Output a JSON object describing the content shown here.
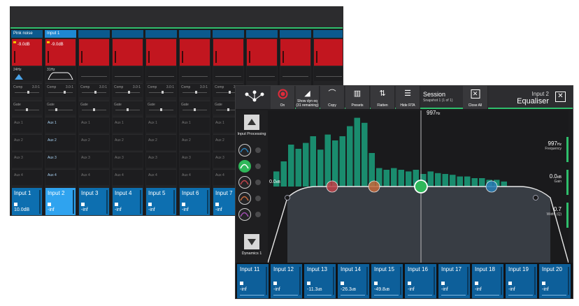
{
  "mixer": {
    "strips": [
      {
        "name": "Pink noise",
        "level": "-9.0dB",
        "eq_freq": "24Hz",
        "comp_label": "Comp",
        "comp_ratio": "3.0:1",
        "gate_label": "Gate",
        "aux": [
          "Aux 1",
          "Aux 2",
          "Aux 3",
          "Aux 4"
        ],
        "fader_name": "Input 1",
        "fader_value": "10.0dB",
        "selected": false
      },
      {
        "name": "Input 1",
        "level": "-9.0dB",
        "eq_freq": "31Hz",
        "comp_label": "Comp",
        "comp_ratio": "3.0:1",
        "gate_label": "Gate",
        "aux": [
          "Aux 1",
          "Aux 2",
          "Aux 3",
          "Aux 4"
        ],
        "fader_name": "Input 2",
        "fader_value": "-inf",
        "selected": true
      },
      {
        "name": "",
        "level": "",
        "eq_freq": "",
        "comp_label": "Comp",
        "comp_ratio": "3.0:1",
        "gate_label": "Gate",
        "aux": [
          "Aux 1",
          "Aux 2",
          "Aux 3",
          "Aux 4"
        ],
        "fader_name": "Input 3",
        "fader_value": "-inf",
        "selected": false
      },
      {
        "name": "",
        "level": "",
        "eq_freq": "",
        "comp_label": "Comp",
        "comp_ratio": "3.0:1",
        "gate_label": "Gate",
        "aux": [
          "Aux 1",
          "Aux 2",
          "Aux 3",
          "Aux 4"
        ],
        "fader_name": "Input 4",
        "fader_value": "-inf",
        "selected": false
      },
      {
        "name": "",
        "level": "",
        "eq_freq": "",
        "comp_label": "Comp",
        "comp_ratio": "3.0:1",
        "gate_label": "Gate",
        "aux": [
          "Aux 1",
          "Aux 2",
          "Aux 3",
          "Aux 4"
        ],
        "fader_name": "Input 5",
        "fader_value": "-inf",
        "selected": false
      },
      {
        "name": "",
        "level": "",
        "eq_freq": "",
        "comp_label": "Comp",
        "comp_ratio": "3.0:1",
        "gate_label": "Gate",
        "aux": [
          "Aux 1",
          "Aux 2",
          "Aux 3",
          "Aux 4"
        ],
        "fader_name": "Input 6",
        "fader_value": "-inf",
        "selected": false
      },
      {
        "name": "",
        "level": "",
        "eq_freq": "",
        "comp_label": "Comp",
        "comp_ratio": "3.0:1",
        "gate_label": "Gate",
        "aux": [
          "Aux 1",
          "Aux 2",
          "Aux 3",
          "Aux 4"
        ],
        "fader_name": "Input 7",
        "fader_value": "-inf",
        "selected": false
      },
      {
        "name": "",
        "level": "",
        "eq_freq": "",
        "comp_label": "",
        "comp_ratio": "",
        "gate_label": "",
        "aux": [
          "",
          "",
          "",
          ""
        ],
        "fader_name": "",
        "fader_value": "",
        "selected": false
      },
      {
        "name": "",
        "level": "",
        "eq_freq": "",
        "comp_label": "",
        "comp_ratio": "",
        "gate_label": "",
        "aux": [
          "",
          "",
          "",
          ""
        ],
        "fader_name": "",
        "fader_value": "",
        "selected": false
      },
      {
        "name": "",
        "level": "",
        "eq_freq": "",
        "comp_label": "",
        "comp_ratio": "",
        "gate_label": "",
        "aux": [
          "",
          "",
          "",
          ""
        ],
        "fader_name": "",
        "fader_value": "",
        "selected": false
      }
    ]
  },
  "eq_window": {
    "toolbar": {
      "on_label": "On",
      "show_dyn_label": "Show dyn eq",
      "show_dyn_sub": "(31 remaining)",
      "copy_label": "Copy",
      "presets_label": "Presets",
      "flatten_label": "Flatten",
      "hide_rta_label": "Hide RTA",
      "close_all_label": "Close All",
      "session_title": "Session",
      "snapshot": "Snapshot 1 (1 of 1)",
      "channel_name": "Input 2",
      "panel_title": "Equaliser"
    },
    "side": {
      "up_label": "Input Processing",
      "down_label": "Dynamics 1"
    },
    "graph": {
      "cursor_freq_value": "997",
      "cursor_freq_unit": "Hz",
      "zero_gain_value": "0.0",
      "zero_gain_unit": "dB",
      "freq_value": "997",
      "freq_unit": "Hz",
      "freq_label": "Frequency",
      "gain_value": "0.0",
      "gain_unit": "dB",
      "gain_label": "Gain",
      "width_value": "0.7",
      "width_label": "Width (Q)",
      "rta_levels": [
        0.18,
        0.3,
        0.5,
        0.45,
        0.52,
        0.6,
        0.44,
        0.62,
        0.55,
        0.6,
        0.72,
        0.82,
        0.76,
        0.4,
        0.22,
        0.2,
        0.22,
        0.2,
        0.18,
        0.2,
        0.15,
        0.18,
        0.16,
        0.15,
        0.14,
        0.12,
        0.12,
        0.1,
        0.1,
        0.08,
        0.08,
        0.06
      ],
      "bands": [
        {
          "color": "#b8b8c8"
        },
        {
          "color": "#c0434a"
        },
        {
          "color": "#c46a3c"
        },
        {
          "color": "#2fb85a"
        },
        {
          "color": "#2a7fb6"
        },
        {
          "color": "#b8b8c8"
        }
      ],
      "accent_green": "#2fbf6c"
    },
    "channels": [
      {
        "name": "Input 11",
        "value": "-inf",
        "unit": ""
      },
      {
        "name": "Input 12",
        "value": "-inf",
        "unit": ""
      },
      {
        "name": "Input 13",
        "value": "-11.3",
        "unit": "dB"
      },
      {
        "name": "Input 14",
        "value": "-26.3",
        "unit": "dB"
      },
      {
        "name": "Input 15",
        "value": "-49.8",
        "unit": "dB"
      },
      {
        "name": "Input 16",
        "value": "-inf",
        "unit": ""
      },
      {
        "name": "Input 17",
        "value": "-inf",
        "unit": ""
      },
      {
        "name": "Input 18",
        "value": "-inf",
        "unit": ""
      },
      {
        "name": "Input 19",
        "value": "-inf",
        "unit": ""
      },
      {
        "name": "Input 20",
        "value": "-inf",
        "unit": ""
      }
    ]
  }
}
